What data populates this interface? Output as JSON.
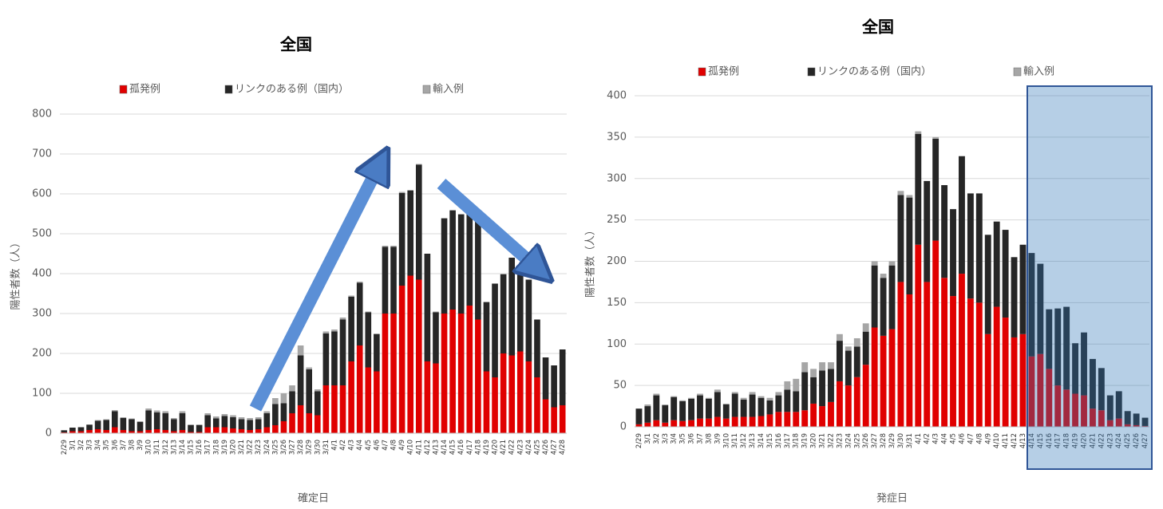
{
  "chart_data": [
    {
      "type": "bar",
      "stacked": true,
      "title": "全国",
      "x_label": "確定日",
      "y_label": "陽性者数（人）",
      "categories": [
        "2/29",
        "3/1",
        "3/2",
        "3/3",
        "3/4",
        "3/5",
        "3/6",
        "3/7",
        "3/8",
        "3/9",
        "3/10",
        "3/11",
        "3/12",
        "3/13",
        "3/14",
        "3/15",
        "3/16",
        "3/17",
        "3/18",
        "3/19",
        "3/20",
        "3/21",
        "3/22",
        "3/23",
        "3/24",
        "3/25",
        "3/26",
        "3/27",
        "3/28",
        "3/29",
        "3/30",
        "3/31",
        "4/1",
        "4/2",
        "4/3",
        "4/4",
        "4/5",
        "4/6",
        "4/7",
        "4/8",
        "4/9",
        "4/10",
        "4/11",
        "4/12",
        "4/13",
        "4/14",
        "4/15",
        "4/16",
        "4/17",
        "4/18",
        "4/19",
        "4/20",
        "4/21",
        "4/22",
        "4/23",
        "4/24",
        "4/25",
        "4/26",
        "4/27",
        "4/28"
      ],
      "series": [
        {
          "name": "孤発例",
          "color": "#e00000",
          "values": [
            2,
            5,
            5,
            8,
            10,
            8,
            15,
            8,
            5,
            5,
            8,
            10,
            8,
            5,
            8,
            3,
            3,
            15,
            15,
            15,
            12,
            10,
            8,
            10,
            15,
            20,
            30,
            50,
            70,
            50,
            45,
            120,
            120,
            120,
            180,
            220,
            165,
            155,
            300,
            300,
            370,
            395,
            385,
            180,
            175,
            300,
            310,
            300,
            320,
            285,
            155,
            140,
            200,
            195,
            205,
            180,
            140,
            85,
            65,
            70
          ]
        },
        {
          "name": "リンクのある例（国内）",
          "color": "#262626",
          "values": [
            5,
            9,
            10,
            13,
            21,
            25,
            40,
            30,
            30,
            23,
            49,
            42,
            42,
            30,
            42,
            17,
            17,
            30,
            22,
            28,
            28,
            25,
            25,
            25,
            35,
            53,
            45,
            55,
            125,
            110,
            60,
            130,
            135,
            165,
            162,
            157,
            138,
            93,
            167,
            167,
            232,
            213,
            288,
            270,
            128,
            238,
            248,
            248,
            233,
            258,
            173,
            235,
            198,
            245,
            205,
            205,
            145,
            105,
            105,
            140
          ]
        },
        {
          "name": "輸入例",
          "color": "#a6a6a6",
          "values": [
            1,
            0,
            0,
            1,
            2,
            2,
            3,
            2,
            2,
            2,
            5,
            5,
            5,
            3,
            5,
            2,
            2,
            5,
            5,
            5,
            5,
            5,
            5,
            5,
            5,
            15,
            25,
            15,
            25,
            5,
            5,
            5,
            5,
            5,
            3,
            3,
            2,
            2,
            3,
            3,
            3,
            2,
            2,
            0,
            2,
            2,
            2,
            2,
            2,
            2,
            2,
            0,
            2,
            0,
            0,
            0,
            0,
            0,
            0,
            0
          ]
        }
      ],
      "ylim": [
        0,
        800
      ],
      "yticks": [
        0,
        100,
        200,
        300,
        400,
        500,
        600,
        700,
        800
      ],
      "grid": true
    },
    {
      "type": "bar",
      "stacked": true,
      "title": "全国",
      "x_label": "発症日",
      "y_label": "陽性者数（人）",
      "categories": [
        "2/29",
        "3/1",
        "3/2",
        "3/3",
        "3/4",
        "3/5",
        "3/6",
        "3/7",
        "3/8",
        "3/9",
        "3/10",
        "3/11",
        "3/12",
        "3/13",
        "3/14",
        "3/15",
        "3/16",
        "3/17",
        "3/18",
        "3/19",
        "3/20",
        "3/21",
        "3/22",
        "3/23",
        "3/24",
        "3/25",
        "3/26",
        "3/27",
        "3/28",
        "3/29",
        "3/30",
        "3/31",
        "4/1",
        "4/2",
        "4/3",
        "4/4",
        "4/5",
        "4/6",
        "4/7",
        "4/8",
        "4/9",
        "4/10",
        "4/11",
        "4/12",
        "4/13",
        "4/14",
        "4/15",
        "4/16",
        "4/17",
        "4/18",
        "4/19",
        "4/20",
        "4/21",
        "4/22",
        "4/23",
        "4/24",
        "4/25",
        "4/26",
        "4/27"
      ],
      "series": [
        {
          "name": "孤発例",
          "color": "#e00000",
          "values": [
            3,
            5,
            8,
            5,
            8,
            7,
            8,
            10,
            10,
            12,
            10,
            12,
            12,
            12,
            13,
            15,
            18,
            18,
            18,
            20,
            28,
            25,
            30,
            55,
            50,
            60,
            75,
            120,
            110,
            118,
            175,
            160,
            220,
            175,
            225,
            180,
            158,
            185,
            155,
            150,
            112,
            145,
            132,
            108,
            112,
            85,
            88,
            70,
            50,
            45,
            40,
            38,
            22,
            20,
            8,
            10,
            3,
            2,
            1
          ]
        },
        {
          "name": "リンクのある例（国内）",
          "color": "#262626",
          "values": [
            19,
            20,
            30,
            21,
            28,
            24,
            26,
            28,
            24,
            30,
            17,
            28,
            21,
            27,
            22,
            17,
            20,
            27,
            25,
            46,
            32,
            43,
            40,
            49,
            42,
            37,
            40,
            75,
            70,
            77,
            105,
            117,
            134,
            122,
            123,
            112,
            105,
            142,
            127,
            132,
            120,
            103,
            106,
            97,
            108,
            125,
            109,
            72,
            93,
            100,
            61,
            76,
            60,
            51,
            30,
            33,
            16,
            14,
            10
          ]
        },
        {
          "name": "輸入例",
          "color": "#a6a6a6",
          "values": [
            0,
            2,
            2,
            1,
            1,
            1,
            1,
            2,
            1,
            3,
            1,
            2,
            2,
            3,
            2,
            3,
            4,
            10,
            15,
            12,
            10,
            10,
            8,
            8,
            5,
            10,
            10,
            5,
            5,
            5,
            5,
            3,
            3,
            0,
            2,
            0,
            0,
            0,
            0,
            0,
            0,
            0,
            0,
            0,
            0,
            0,
            0,
            0,
            0,
            0,
            0,
            0,
            0,
            0,
            0,
            0,
            0,
            0,
            0
          ]
        }
      ],
      "ylim": [
        0,
        400
      ],
      "yticks": [
        0,
        50,
        100,
        150,
        200,
        250,
        300,
        350,
        400
      ],
      "grid": true
    }
  ]
}
